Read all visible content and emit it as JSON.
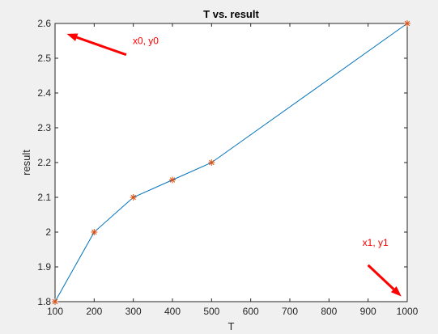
{
  "chart_data": {
    "type": "line",
    "title": "T vs. result",
    "xlabel": "T",
    "ylabel": "result",
    "xlim": [
      100,
      1000
    ],
    "ylim": [
      1.8,
      2.6
    ],
    "xticks": [
      "100",
      "200",
      "300",
      "400",
      "500",
      "600",
      "700",
      "800",
      "900",
      "1000"
    ],
    "yticks": [
      "1.8",
      "1.9",
      "2",
      "2.1",
      "2.2",
      "2.3",
      "2.4",
      "2.5",
      "2.6"
    ],
    "grid": false,
    "series": [
      {
        "x": [
          100,
          200,
          300,
          400,
          500,
          1000
        ],
        "y": [
          1.8,
          2.0,
          2.1,
          2.15,
          2.2,
          2.6
        ],
        "line_color": "#0072bd",
        "marker": "asterisk",
        "marker_color": "#d95319"
      }
    ],
    "annotations": [
      {
        "text": "x0, y0",
        "color": "#ff0000",
        "arrow_tail": [
          282,
          2.51
        ],
        "arrow_head": [
          130,
          2.57
        ]
      },
      {
        "text": "x1, y1",
        "color": "#ff0000",
        "arrow_tail": [
          900,
          1.905
        ],
        "arrow_head": [
          985,
          1.815
        ]
      }
    ]
  }
}
